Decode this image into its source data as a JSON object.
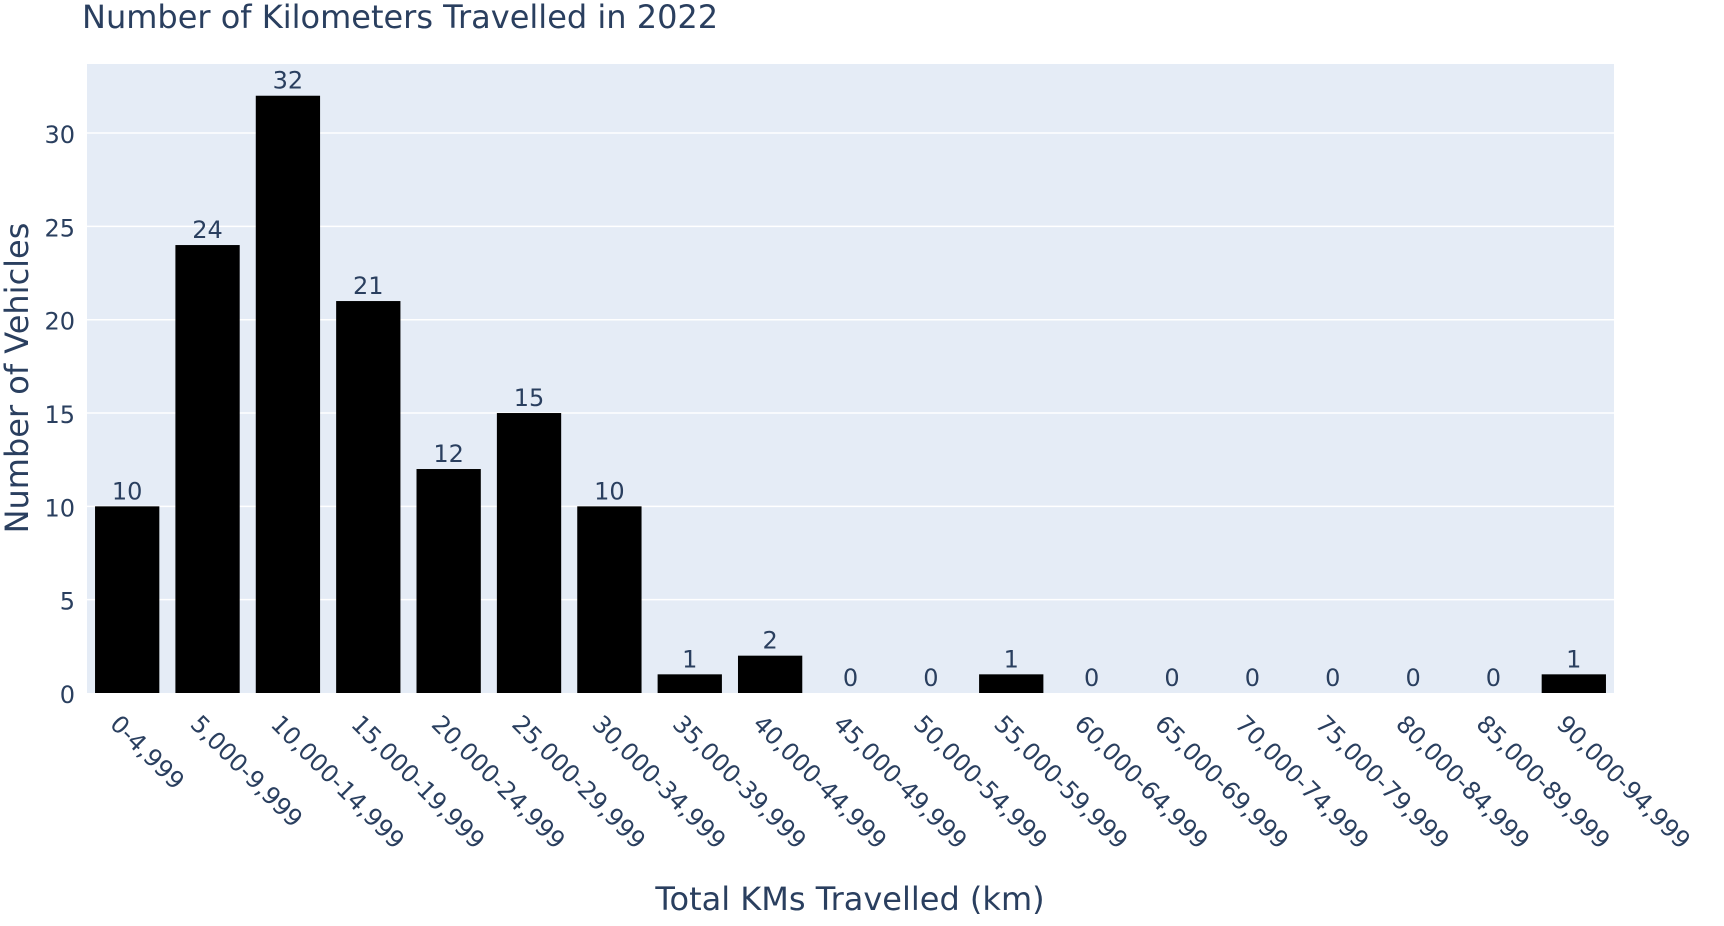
{
  "chart_data": {
    "type": "bar",
    "title": "Number of Kilometers Travelled in 2022",
    "xlabel": "Total KMs Travelled (km)",
    "ylabel": "Number of Vehicles",
    "categories": [
      "0-4,999",
      "5,000-9,999",
      "10,000-14,999",
      "15,000-19,999",
      "20,000-24,999",
      "25,000-29,999",
      "30,000-34,999",
      "35,000-39,999",
      "40,000-44,999",
      "45,000-49,999",
      "50,000-54,999",
      "55,000-59,999",
      "60,000-64,999",
      "65,000-69,999",
      "70,000-74,999",
      "75,000-79,999",
      "80,000-84,999",
      "85,000-89,999",
      "90,000-94,999"
    ],
    "values": [
      10,
      24,
      32,
      21,
      12,
      15,
      10,
      1,
      2,
      0,
      0,
      1,
      0,
      0,
      0,
      0,
      0,
      0,
      1
    ],
    "ylim": [
      0,
      33.7
    ],
    "yticks": [
      0,
      5,
      10,
      15,
      20,
      25,
      30
    ],
    "grid": true,
    "legend": "none",
    "colors": {
      "bar": "#000000",
      "plot_background": "#e5ecf6",
      "gridline": "#ffffff",
      "text": "#2a3f5f"
    }
  }
}
